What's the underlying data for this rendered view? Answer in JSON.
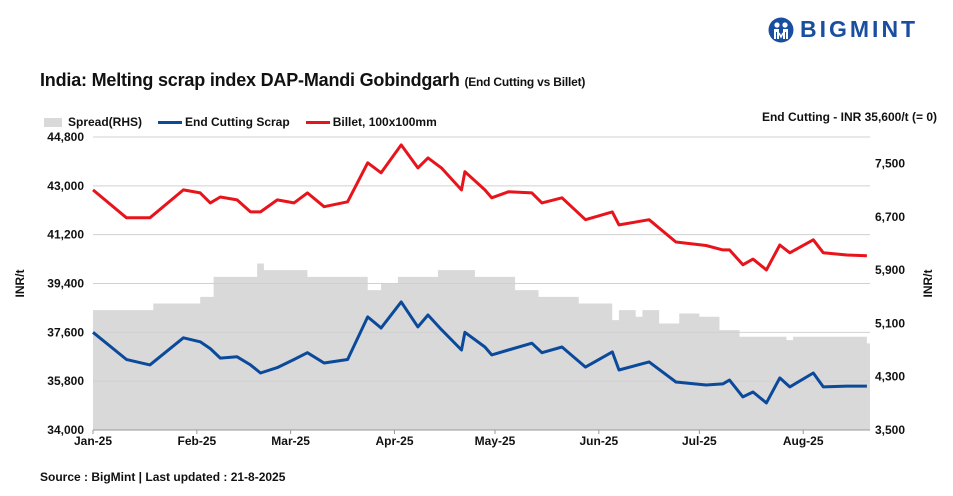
{
  "header": {
    "title": "India: Melting scrap index DAP-Mandi Gobindgarh",
    "subtitle": "(End Cutting vs Billet)",
    "logo_text": "BIGMINT",
    "brand_color": "#1a4fa0"
  },
  "note": "End Cutting - INR 35,600/t (= 0)",
  "source": "Source : BigMint | Last updated : 21-8-2025",
  "chart_data": {
    "type": "line",
    "title": "India: Melting scrap index DAP-Mandi Gobindgarh (End Cutting vs Billet)",
    "xlabel": "",
    "ylabel": "INR/t",
    "ylabel_right": "INR/t",
    "ylim": [
      34000,
      44800
    ],
    "ylim_right": [
      3500,
      7900
    ],
    "yticks": [
      "34,000",
      "35,800",
      "37,600",
      "39,400",
      "41,200",
      "43,000",
      "44,800"
    ],
    "yticks_right": [
      "3,500",
      "4,300",
      "5,100",
      "5,900",
      "6,700",
      "7,500"
    ],
    "xticks": [
      "Jan-25",
      "Feb-25",
      "Mar-25",
      "Apr-25",
      "May-25",
      "Jun-25",
      "Jul-25",
      "Aug-25"
    ],
    "grid": true,
    "legend_position": "top-left",
    "legend": [
      "Spread(RHS)",
      "End Cutting Scrap",
      "Billet, 100x100mm"
    ],
    "colors": {
      "spread": "#d9d9d9",
      "scrap": "#0b4a9a",
      "billet": "#e8141b"
    },
    "dates": [
      "2025-01-01",
      "2025-01-11",
      "2025-01-18",
      "2025-01-28",
      "2025-02-02",
      "2025-02-05",
      "2025-02-08",
      "2025-02-13",
      "2025-02-17",
      "2025-02-20",
      "2025-02-25",
      "2025-03-02",
      "2025-03-06",
      "2025-03-11",
      "2025-03-18",
      "2025-03-24",
      "2025-03-28",
      "2025-04-03",
      "2025-04-08",
      "2025-04-11",
      "2025-04-15",
      "2025-04-21",
      "2025-04-22",
      "2025-04-28",
      "2025-04-30",
      "2025-05-05",
      "2025-05-12",
      "2025-05-15",
      "2025-05-21",
      "2025-05-28",
      "2025-06-05",
      "2025-06-07",
      "2025-06-16",
      "2025-06-24",
      "2025-07-03",
      "2025-07-08",
      "2025-07-10",
      "2025-07-14",
      "2025-07-17",
      "2025-07-21",
      "2025-07-25",
      "2025-07-28",
      "2025-08-04",
      "2025-08-07",
      "2025-08-14",
      "2025-08-20"
    ],
    "series": [
      {
        "name": "End Cutting Scrap",
        "axis": "left",
        "values": [
          37600,
          36600,
          36400,
          37400,
          37250,
          37000,
          36650,
          36700,
          36400,
          36100,
          36300,
          36600,
          36850,
          36470,
          36600,
          38170,
          37760,
          38720,
          37800,
          38240,
          37700,
          36950,
          37600,
          37060,
          36770,
          36950,
          37200,
          36850,
          37060,
          36320,
          36880,
          36210,
          36510,
          35770,
          35660,
          35700,
          35840,
          35220,
          35400,
          35000,
          35920,
          35590,
          36100,
          35590,
          35620,
          35620
        ]
      },
      {
        "name": "Billet, 100x100mm",
        "axis": "left",
        "values": [
          42850,
          41820,
          41820,
          42850,
          42740,
          42370,
          42590,
          42480,
          42040,
          42040,
          42480,
          42370,
          42740,
          42230,
          42410,
          43850,
          43480,
          44510,
          43660,
          44030,
          43660,
          42850,
          43520,
          42850,
          42560,
          42780,
          42740,
          42370,
          42560,
          41750,
          42040,
          41560,
          41750,
          40930,
          40800,
          40640,
          40640,
          40090,
          40300,
          39900,
          40820,
          40530,
          41010,
          40530,
          40450,
          40420
        ]
      }
    ],
    "spread": {
      "name": "Spread(RHS)",
      "axis": "right",
      "dates": [
        "2025-01-01",
        "2025-01-19",
        "2025-02-02",
        "2025-02-06",
        "2025-02-19",
        "2025-02-21",
        "2025-03-06",
        "2025-03-24",
        "2025-03-28",
        "2025-04-02",
        "2025-04-14",
        "2025-04-25",
        "2025-05-07",
        "2025-05-14",
        "2025-05-26",
        "2025-06-05",
        "2025-06-07",
        "2025-06-12",
        "2025-06-14",
        "2025-06-19",
        "2025-06-25",
        "2025-07-01",
        "2025-07-07",
        "2025-07-13",
        "2025-07-27",
        "2025-07-29",
        "2025-08-20"
      ],
      "values": [
        5300,
        5400,
        5500,
        5800,
        6000,
        5900,
        5800,
        5600,
        5700,
        5800,
        5900,
        5800,
        5600,
        5500,
        5400,
        5150,
        5300,
        5200,
        5300,
        5100,
        5250,
        5200,
        5000,
        4900,
        4850,
        4900,
        4800
      ]
    }
  }
}
